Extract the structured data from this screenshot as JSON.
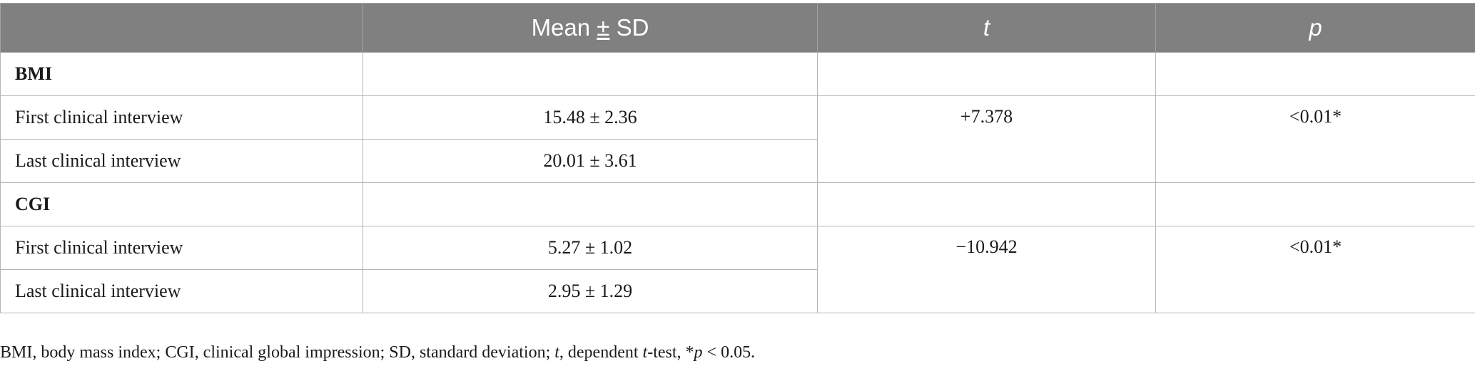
{
  "table": {
    "headers": {
      "col1": "",
      "col2_pre": "Mean ",
      "col2_pm": "±",
      "col2_post": " SD",
      "col3": "t",
      "col4": "p"
    },
    "groups": [
      {
        "label": "BMI",
        "rows": [
          {
            "label": "First clinical interview",
            "value": "15.48 ± 2.36"
          },
          {
            "label": "Last clinical interview",
            "value": "20.01 ± 3.61"
          }
        ],
        "t": "+7.378",
        "p": "<0.01*"
      },
      {
        "label": "CGI",
        "rows": [
          {
            "label": "First clinical interview",
            "value": "5.27 ± 1.02"
          },
          {
            "label": "Last clinical interview",
            "value": "2.95 ± 1.29"
          }
        ],
        "t": "−10.942",
        "p": "<0.01*"
      }
    ]
  },
  "footnote": {
    "part1": "BMI, body mass index; CGI, clinical global impression; SD, standard deviation; ",
    "t_italic": "t",
    "part2": ", dependent ",
    "t2_italic": "t",
    "part3": "-test, *",
    "p_italic": "p",
    "part4": " < 0.05."
  }
}
